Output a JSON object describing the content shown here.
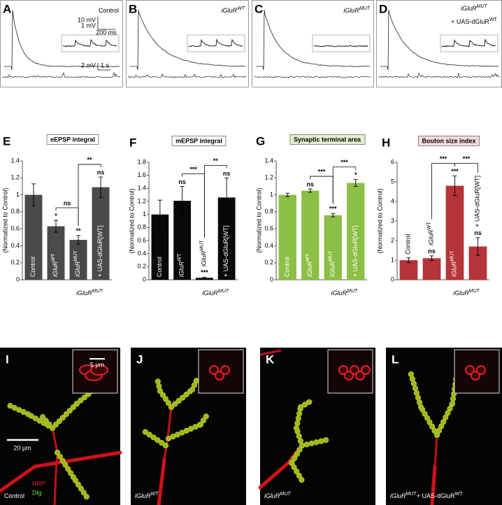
{
  "traces": [
    {
      "letter": "A",
      "label": "Control"
    },
    {
      "letter": "B",
      "label": "iGluR",
      "label_sup": "WT"
    },
    {
      "letter": "C",
      "label": "iGluR",
      "label_sup": "MUT"
    },
    {
      "letter": "D",
      "label": "iGluR",
      "label_sup": "MUT",
      "label2": "+ UAS-dGluR",
      "label2_sup": "WT"
    }
  ],
  "scale_labels": [
    "10 mV",
    "1 mV",
    "200 ms",
    "2 mV",
    "1 s"
  ],
  "chart_data": [
    {
      "type": "bar",
      "letter": "E",
      "title": "eEPSP integral",
      "title_color": "#ffffff",
      "ylabel": "(Normalized to Control)",
      "categories": [
        "Control",
        "iGluR",
        "iGluR",
        "+ UAS-dGluR[WT]"
      ],
      "category_sup": [
        null,
        "WT",
        "MUT",
        null
      ],
      "values": [
        1.0,
        0.63,
        0.47,
        1.09
      ],
      "errors": [
        0.13,
        0.07,
        0.05,
        0.12
      ],
      "color": "#4a4a4a",
      "ylim": [
        0,
        1.4
      ],
      "yticks": [
        0,
        0.2,
        0.4,
        0.6,
        0.8,
        1,
        1.2,
        1.4
      ],
      "bar_annotations": [
        null,
        "*",
        "**",
        "ns"
      ],
      "bracket_labels": [
        "ns",
        "**"
      ],
      "group_label": "iGluR",
      "group_label_sup": "MUT"
    },
    {
      "type": "bar",
      "letter": "F",
      "title": "mEPSP integral",
      "title_color": "#ffffff",
      "ylabel": "(Normalized to Control)",
      "categories": [
        "Control",
        "iGluR",
        "iGluR",
        "+ UAS-dGluR[WT]"
      ],
      "category_sup": [
        null,
        "WT",
        "MUT",
        null
      ],
      "values": [
        1.0,
        1.21,
        0.03,
        1.26
      ],
      "errors": [
        0.22,
        0.22,
        0.01,
        0.3
      ],
      "color": "#080808",
      "ylim": [
        0,
        1.8
      ],
      "yticks": [
        0,
        0.2,
        0.4,
        0.6,
        0.8,
        1,
        1.2,
        1.4,
        1.6,
        1.8
      ],
      "bar_annotations": [
        null,
        "ns",
        "***",
        "ns"
      ],
      "bracket_labels": [
        "***",
        "**"
      ],
      "group_label": "iGluR",
      "group_label_sup": "MUT"
    },
    {
      "type": "bar",
      "letter": "G",
      "title": "Synaptic terminal area",
      "title_color": "#e3f0cf",
      "ylabel": "(Normalized to Control)",
      "categories": [
        "Control",
        "iGluR",
        "iGluR",
        "+ UAS-dGluR[WT]"
      ],
      "category_sup": [
        null,
        "WT",
        "MUT",
        null
      ],
      "values": [
        1.0,
        1.05,
        0.76,
        1.14
      ],
      "errors": [
        0.02,
        0.02,
        0.02,
        0.04
      ],
      "color": "#8cbf45",
      "ylim": [
        0,
        1.4
      ],
      "yticks": [
        0,
        0.2,
        0.4,
        0.6,
        0.8,
        1,
        1.2,
        1.4
      ],
      "bar_annotations": [
        null,
        "ns",
        "***",
        "*"
      ],
      "bracket_labels": [
        "***",
        "***"
      ],
      "group_label": "iGluR",
      "group_label_sup": "MUT"
    },
    {
      "type": "bar",
      "letter": "H",
      "title": "Bouton size index",
      "title_color": "#f4dcdc",
      "ylabel": "(Normalized to Control)",
      "categories": [
        "Control",
        "iGluR",
        "iGluR",
        "+ UAS-dGluR[WT]"
      ],
      "category_sup": [
        null,
        "WT",
        "MUT",
        null
      ],
      "values": [
        1.0,
        1.1,
        4.8,
        1.7
      ],
      "errors": [
        0.12,
        0.12,
        0.5,
        0.45
      ],
      "color": "#b5343a",
      "ylim": [
        0,
        6
      ],
      "yticks": [
        0,
        1,
        2,
        3,
        4,
        5,
        6
      ],
      "bar_annotations": [
        null,
        "ns",
        "***",
        "ns"
      ],
      "bracket_labels": [
        "***",
        "***"
      ],
      "group_label": "iGluR",
      "group_label_sup": "MUT"
    }
  ],
  "images": [
    {
      "letter": "I",
      "label": "Control"
    },
    {
      "letter": "J",
      "label": "iGluR",
      "label_sup": "WT"
    },
    {
      "letter": "K",
      "label": "iGluR",
      "label_sup": "MUT"
    },
    {
      "letter": "L",
      "label": "iGluR",
      "label_sup": "MUT",
      "label2": "+ UAS-dGluR",
      "label2_sup": "WT"
    }
  ],
  "image_scale": [
    "5 μm",
    "20 μm"
  ],
  "stain_labels": [
    "HRP",
    "Dlg"
  ]
}
